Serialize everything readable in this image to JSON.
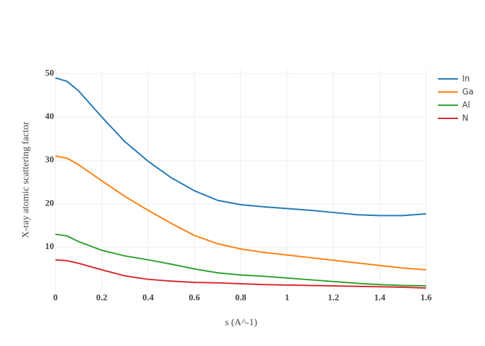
{
  "chart_data": {
    "type": "line",
    "xlabel": "s (A^-1)",
    "ylabel": "X-ray atomic scattering factor",
    "x": [
      0,
      0.05,
      0.1,
      0.2,
      0.3,
      0.4,
      0.5,
      0.6,
      0.7,
      0.8,
      0.9,
      1.0,
      1.1,
      1.2,
      1.3,
      1.4,
      1.5,
      1.6
    ],
    "series": [
      {
        "name": "In",
        "color": "#1f77b4",
        "values": [
          49,
          48.2,
          46,
          40,
          34.3,
          29.8,
          26,
          23,
          20.8,
          19.8,
          19.3,
          18.9,
          18.5,
          18,
          17.5,
          17.3,
          17.3,
          17.7
        ]
      },
      {
        "name": "Ga",
        "color": "#ff7f0e",
        "values": [
          31,
          30.5,
          29,
          25.3,
          21.7,
          18.5,
          15.5,
          12.7,
          10.8,
          9.6,
          8.8,
          8.2,
          7.6,
          7,
          6.4,
          5.8,
          5.2,
          4.8
        ]
      },
      {
        "name": "Al",
        "color": "#2ca02c",
        "values": [
          13,
          12.6,
          11.3,
          9.3,
          8,
          7.1,
          6.1,
          5,
          4.1,
          3.6,
          3.3,
          2.9,
          2.5,
          2.1,
          1.7,
          1.4,
          1.2,
          1.1
        ]
      },
      {
        "name": "N",
        "color": "#d62728",
        "values": [
          7.1,
          6.9,
          6.3,
          4.8,
          3.4,
          2.6,
          2.2,
          1.9,
          1.8,
          1.6,
          1.4,
          1.3,
          1.2,
          1.1,
          1,
          0.9,
          0.8,
          0.6
        ]
      }
    ],
    "xlim": [
      0,
      1.6
    ],
    "xticks": [
      0,
      0.2,
      0.4,
      0.6,
      0.8,
      1.0,
      1.2,
      1.4,
      1.6
    ],
    "ylim": [
      0,
      51
    ],
    "yticks": [
      10,
      20,
      30,
      40,
      50
    ],
    "grid": true,
    "legend": "right"
  }
}
